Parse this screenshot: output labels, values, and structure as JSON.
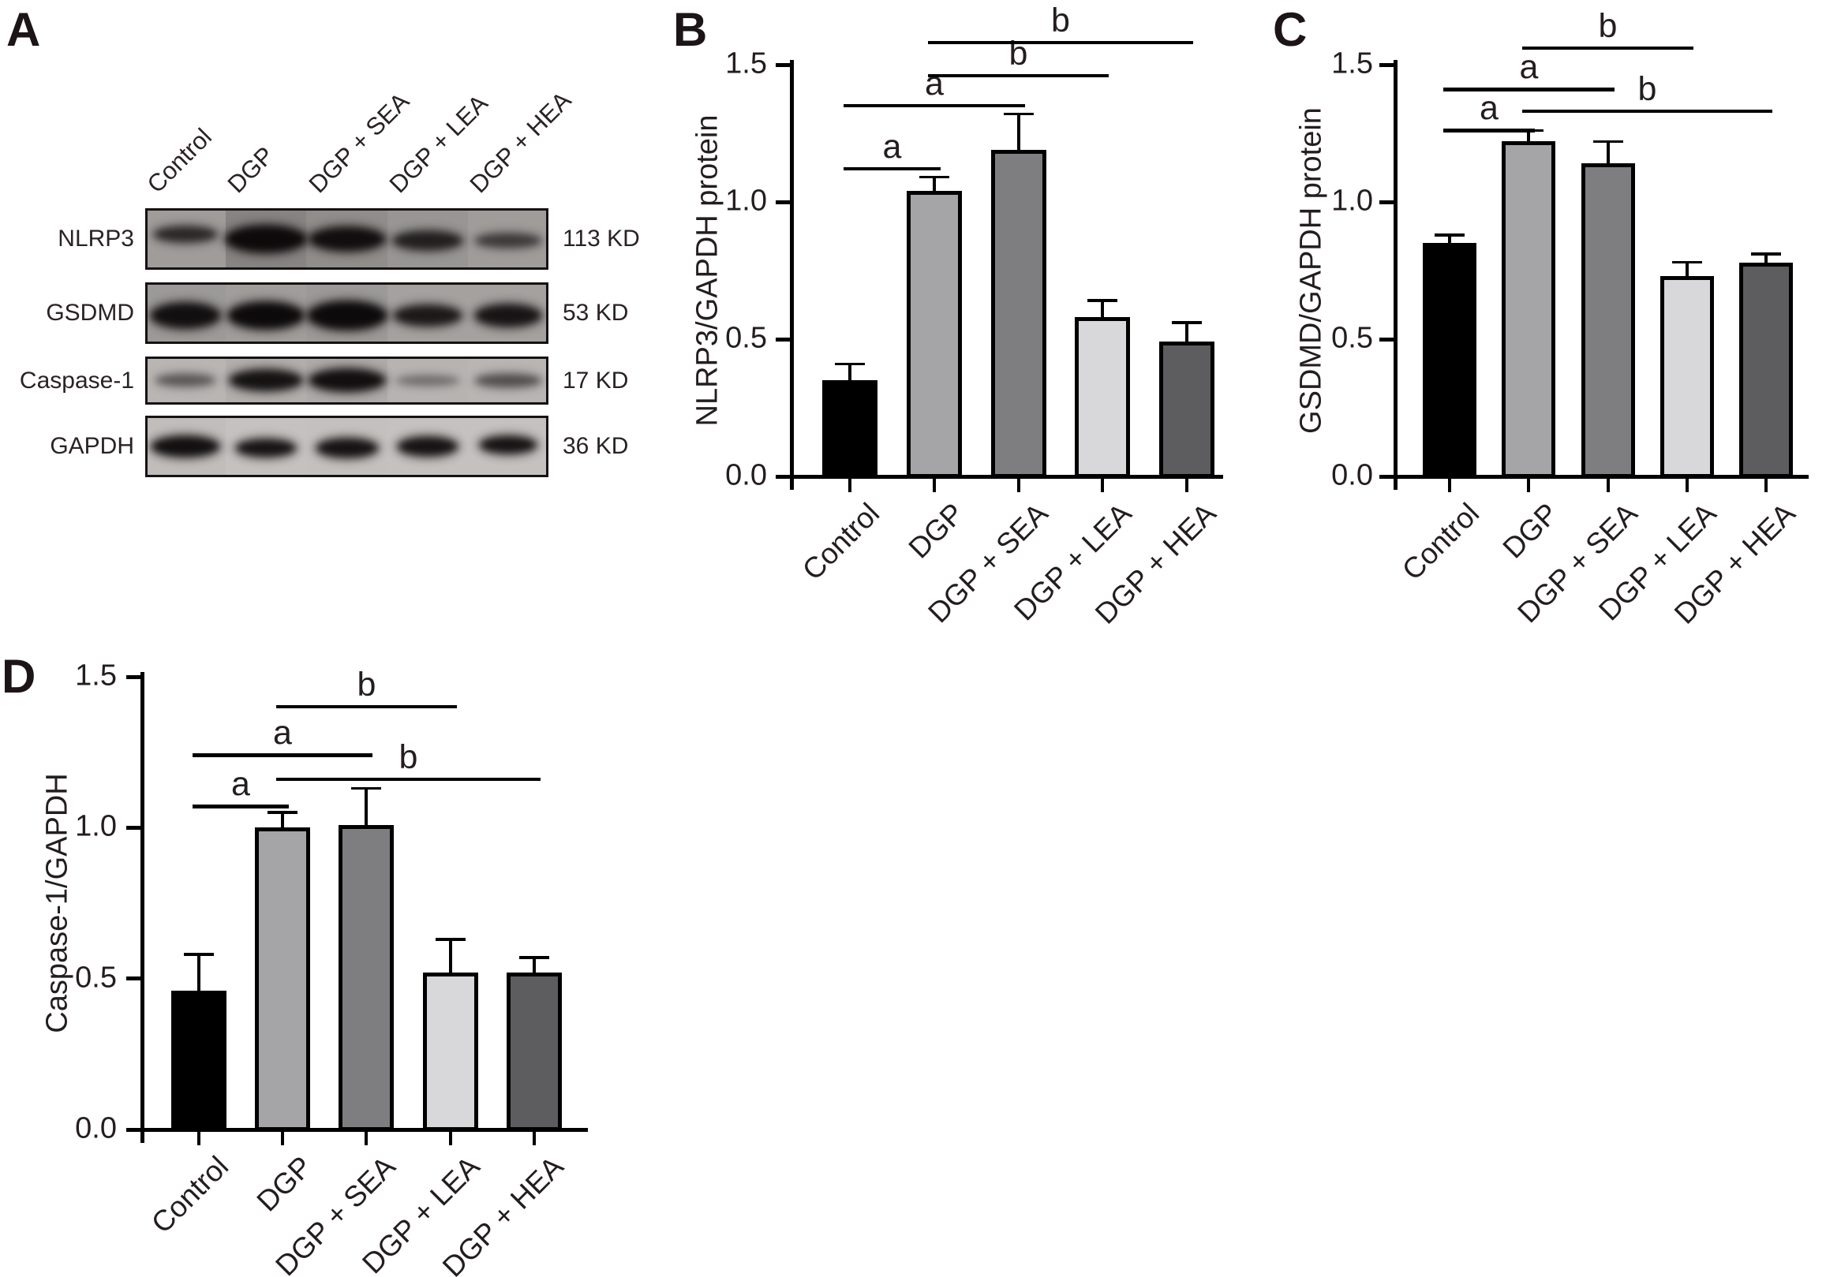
{
  "figure": {
    "background": "#ffffff",
    "ink": "#241d1f"
  },
  "panel_a": {
    "label": "A",
    "lane_labels": [
      "Control",
      "DGP",
      "DGP + SEA",
      "DGP + LEA",
      "DGP + HEA"
    ],
    "rows": [
      {
        "protein": "NLRP3",
        "weight": "113 KD",
        "strip_bg": "#a8a5a3",
        "lane_tints": [
          0.06,
          0.22,
          0.16,
          0.1,
          0.06
        ],
        "bands": [
          {
            "w": 80,
            "h": 20,
            "o": 0.8,
            "dy": -6
          },
          {
            "w": 102,
            "h": 34,
            "o": 1.0,
            "dy": 0
          },
          {
            "w": 96,
            "h": 30,
            "o": 0.97,
            "dy": 0
          },
          {
            "w": 88,
            "h": 24,
            "o": 0.85,
            "dy": 2
          },
          {
            "w": 84,
            "h": 18,
            "o": 0.68,
            "dy": 2
          }
        ]
      },
      {
        "protein": "GSDMD",
        "weight": "53 KD",
        "strip_bg": "#b0adab",
        "lane_tints": [
          0.12,
          0.1,
          0.12,
          0.07,
          0.07
        ],
        "bands": [
          {
            "w": 88,
            "h": 32,
            "o": 0.96,
            "dy": 0
          },
          {
            "w": 96,
            "h": 34,
            "o": 1.0,
            "dy": 0
          },
          {
            "w": 100,
            "h": 36,
            "o": 1.0,
            "dy": 0
          },
          {
            "w": 86,
            "h": 26,
            "o": 0.9,
            "dy": 0
          },
          {
            "w": 84,
            "h": 28,
            "o": 0.93,
            "dy": 0
          }
        ]
      },
      {
        "protein": "Caspase-1",
        "weight": "17 KD",
        "strip_bg": "#bfbcba",
        "lane_tints": [
          0.04,
          0.08,
          0.1,
          0.05,
          0.04
        ],
        "bands": [
          {
            "w": 76,
            "h": 16,
            "o": 0.55,
            "dy": 0
          },
          {
            "w": 92,
            "h": 26,
            "o": 0.95,
            "dy": 0
          },
          {
            "w": 96,
            "h": 28,
            "o": 0.97,
            "dy": 0
          },
          {
            "w": 80,
            "h": 13,
            "o": 0.42,
            "dy": 0
          },
          {
            "w": 84,
            "h": 17,
            "o": 0.6,
            "dy": 0
          }
        ]
      },
      {
        "protein": "GAPDH",
        "weight": "36 KD",
        "strip_bg": "#cac7c5",
        "lane_tints": [
          0.05,
          0.03,
          0.04,
          0.03,
          0.03
        ],
        "bands": [
          {
            "w": 86,
            "h": 26,
            "o": 0.97,
            "dy": 0
          },
          {
            "w": 76,
            "h": 22,
            "o": 0.95,
            "dy": 2
          },
          {
            "w": 78,
            "h": 24,
            "o": 0.95,
            "dy": 2
          },
          {
            "w": 76,
            "h": 24,
            "o": 0.95,
            "dy": 0
          },
          {
            "w": 72,
            "h": 22,
            "o": 0.95,
            "dy": -2
          }
        ]
      }
    ]
  },
  "chart_data": [
    {
      "id": "B",
      "panel_label": "B",
      "type": "bar",
      "categories": [
        "Control",
        "DGP",
        "DGP + SEA",
        "DGP + LEA",
        "DGP + HEA"
      ],
      "values": [
        0.35,
        1.04,
        1.19,
        0.58,
        0.49
      ],
      "errors": [
        0.06,
        0.05,
        0.13,
        0.06,
        0.07
      ],
      "bar_colors": [
        "#000000",
        "#a5a4a7",
        "#7e7d80",
        "#d8d7d9",
        "#5d5c5e"
      ],
      "ylabel": "NLRP3/GAPDH protein",
      "xlabel": "",
      "yticks": [
        "0.0",
        "0.5",
        "1.0",
        "1.5"
      ],
      "ylim": [
        0,
        1.5
      ],
      "grid": false,
      "legend": "none",
      "brackets": [
        {
          "label": "a",
          "from": 0,
          "to": 1,
          "y": 1.12
        },
        {
          "label": "a",
          "from": 0,
          "to": 2,
          "y": 1.35
        },
        {
          "label": "b",
          "from": 1,
          "to": 3,
          "y": 1.46
        },
        {
          "label": "b",
          "from": 1,
          "to": 4,
          "y": 1.58
        }
      ]
    },
    {
      "id": "C",
      "panel_label": "C",
      "type": "bar",
      "categories": [
        "Control",
        "DGP",
        "DGP + SEA",
        "DGP + LEA",
        "DGP + HEA"
      ],
      "values": [
        0.85,
        1.22,
        1.14,
        0.73,
        0.78
      ],
      "errors": [
        0.03,
        0.04,
        0.08,
        0.05,
        0.03
      ],
      "bar_colors": [
        "#000000",
        "#a5a4a7",
        "#7e7d80",
        "#d8d7d9",
        "#5d5c5e"
      ],
      "ylabel": "GSDMD/GAPDH protein",
      "xlabel": "",
      "yticks": [
        "0.0",
        "0.5",
        "1.0",
        "1.5"
      ],
      "ylim": [
        0,
        1.5
      ],
      "grid": false,
      "legend": "none",
      "brackets": [
        {
          "label": "a",
          "from": 0,
          "to": 1,
          "y": 1.26
        },
        {
          "label": "b",
          "from": 1,
          "to": 4,
          "y": 1.33
        },
        {
          "label": "a",
          "from": 0,
          "to": 2,
          "y": 1.41
        },
        {
          "label": "b",
          "from": 1,
          "to": 3,
          "y": 1.56
        }
      ]
    },
    {
      "id": "D",
      "panel_label": "D",
      "type": "bar",
      "categories": [
        "Control",
        "DGP",
        "DGP + SEA",
        "DGP + LEA",
        "DGP + HEA"
      ],
      "values": [
        0.46,
        1.0,
        1.01,
        0.52,
        0.52
      ],
      "errors": [
        0.12,
        0.05,
        0.12,
        0.11,
        0.05
      ],
      "bar_colors": [
        "#000000",
        "#a5a4a7",
        "#7e7d80",
        "#d8d7d9",
        "#5d5c5e"
      ],
      "ylabel": "Caspase-1/GAPDH",
      "xlabel": "",
      "yticks": [
        "0.0",
        "0.5",
        "1.0",
        "1.5"
      ],
      "ylim": [
        0,
        1.5
      ],
      "grid": false,
      "legend": "none",
      "brackets": [
        {
          "label": "a",
          "from": 0,
          "to": 1,
          "y": 1.07
        },
        {
          "label": "b",
          "from": 1,
          "to": 4,
          "y": 1.16
        },
        {
          "label": "a",
          "from": 0,
          "to": 2,
          "y": 1.24
        },
        {
          "label": "b",
          "from": 1,
          "to": 3,
          "y": 1.4
        }
      ]
    }
  ]
}
